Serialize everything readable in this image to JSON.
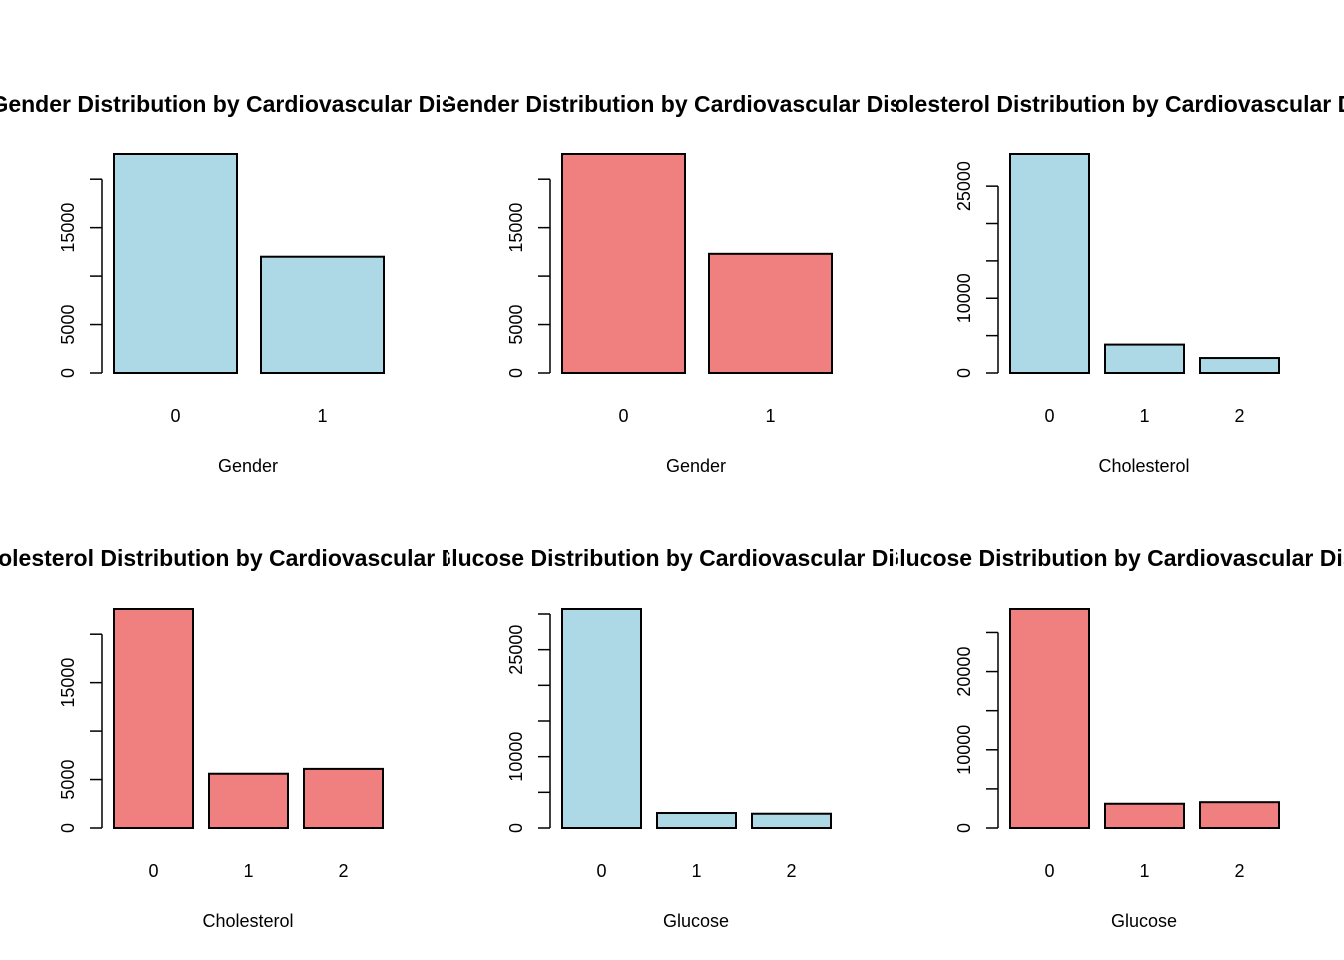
{
  "colors": {
    "blue": "#add8e6",
    "red": "#f08080",
    "stroke": "#000000"
  },
  "chart_data": [
    {
      "type": "bar",
      "title": "Gender Distribution by Cardiovascular Disease",
      "xlabel": "Gender",
      "categories": [
        "0",
        "1"
      ],
      "values": [
        22600,
        12000
      ],
      "yticks": [
        "0",
        "5000",
        "15000"
      ],
      "ytick_values": [
        0,
        5000,
        10000,
        15000,
        20000
      ],
      "ylim": [
        0,
        22600
      ],
      "color": "blue"
    },
    {
      "type": "bar",
      "title": "Gender Distribution by Cardiovascular Disease",
      "xlabel": "Gender",
      "categories": [
        "0",
        "1"
      ],
      "values": [
        22600,
        12300
      ],
      "yticks": [
        "0",
        "5000",
        "15000"
      ],
      "ytick_values": [
        0,
        5000,
        10000,
        15000,
        20000
      ],
      "ylim": [
        0,
        22600
      ],
      "color": "red"
    },
    {
      "type": "bar",
      "title": "Cholesterol Distribution by Cardiovascular Disease",
      "xlabel": "Cholesterol",
      "categories": [
        "0",
        "1",
        "2"
      ],
      "values": [
        29300,
        3800,
        2000
      ],
      "yticks": [
        "0",
        "10000",
        "25000"
      ],
      "ytick_values": [
        0,
        5000,
        10000,
        15000,
        20000,
        25000
      ],
      "ylim": [
        0,
        29300
      ],
      "color": "blue"
    },
    {
      "type": "bar",
      "title": "Cholesterol Distribution by Cardiovascular Disease",
      "xlabel": "Cholesterol",
      "categories": [
        "0",
        "1",
        "2"
      ],
      "values": [
        22600,
        5600,
        6100
      ],
      "yticks": [
        "0",
        "5000",
        "15000"
      ],
      "ytick_values": [
        0,
        5000,
        10000,
        15000,
        20000
      ],
      "ylim": [
        0,
        22600
      ],
      "color": "red"
    },
    {
      "type": "bar",
      "title": "Glucose Distribution by Cardiovascular Disease",
      "xlabel": "Glucose",
      "categories": [
        "0",
        "1",
        "2"
      ],
      "values": [
        30700,
        2100,
        2000
      ],
      "yticks": [
        "0",
        "10000",
        "25000"
      ],
      "ytick_values": [
        0,
        5000,
        10000,
        15000,
        20000,
        25000,
        30000
      ],
      "ylim": [
        0,
        30700
      ],
      "color": "blue"
    },
    {
      "type": "bar",
      "title": "Glucose Distribution by Cardiovascular Disease",
      "xlabel": "Glucose",
      "categories": [
        "0",
        "1",
        "2"
      ],
      "values": [
        28000,
        3100,
        3300
      ],
      "yticks": [
        "0",
        "10000",
        "20000"
      ],
      "ytick_values": [
        0,
        5000,
        10000,
        15000,
        20000,
        25000
      ],
      "ylim": [
        0,
        28000
      ],
      "color": "red"
    }
  ]
}
